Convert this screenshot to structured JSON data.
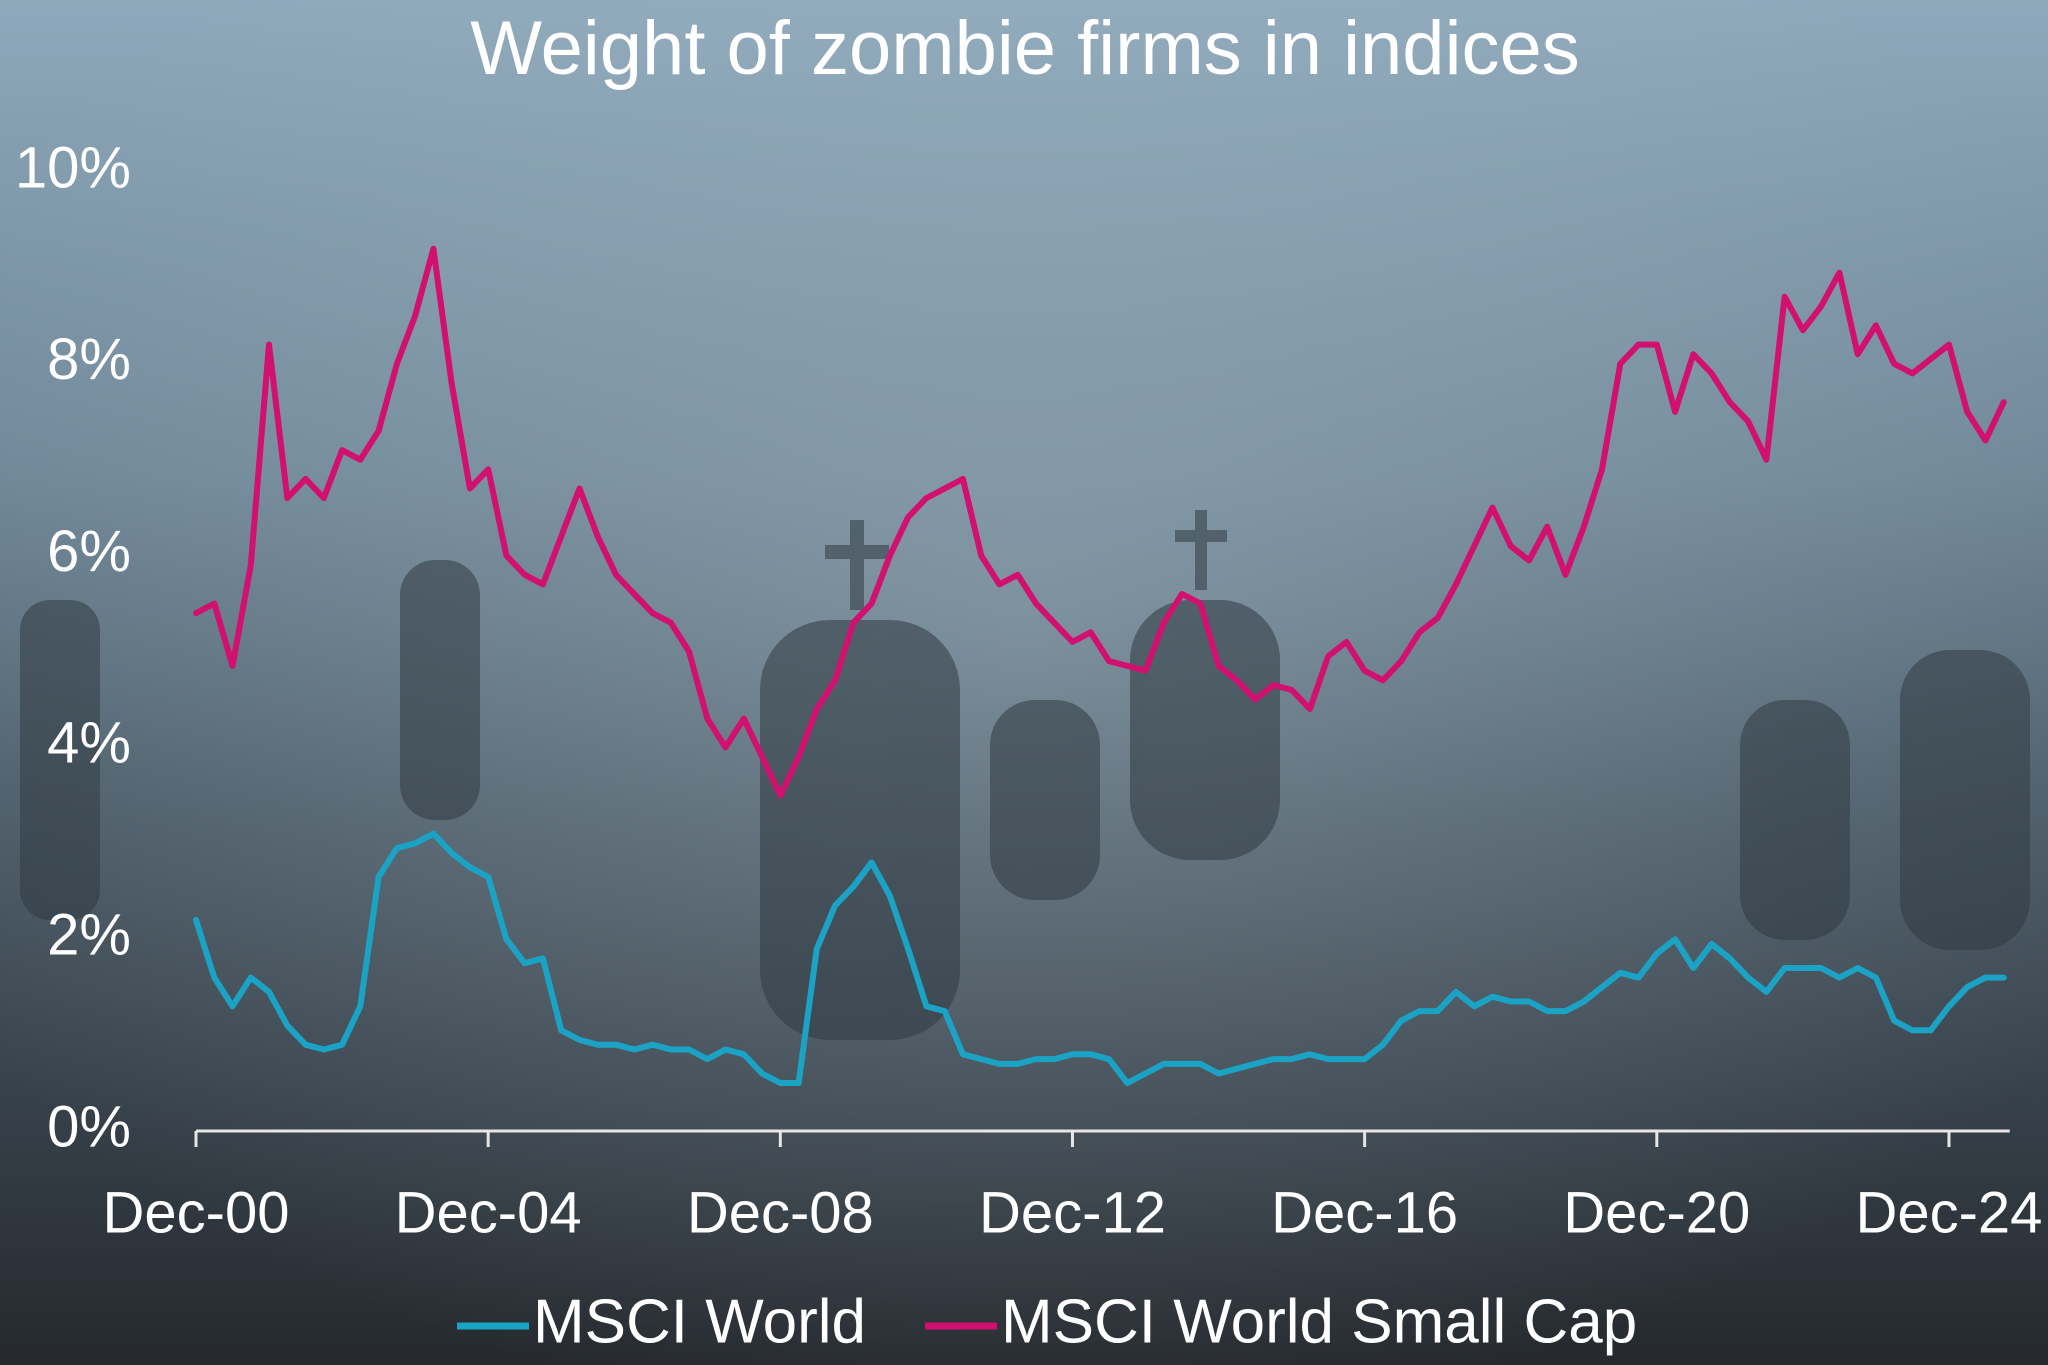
{
  "chart_data": {
    "type": "line",
    "title": "Weight of zombie firms in indices",
    "x": [
      "Dec-00",
      "Mar-01",
      "Jun-01",
      "Sep-01",
      "Dec-01",
      "Mar-02",
      "Jun-02",
      "Sep-02",
      "Dec-02",
      "Mar-03",
      "Jun-03",
      "Sep-03",
      "Dec-03",
      "Mar-04",
      "Jun-04",
      "Sep-04",
      "Dec-04",
      "Mar-05",
      "Jun-05",
      "Sep-05",
      "Dec-05",
      "Mar-06",
      "Jun-06",
      "Sep-06",
      "Dec-06",
      "Mar-07",
      "Jun-07",
      "Sep-07",
      "Dec-07",
      "Mar-08",
      "Jun-08",
      "Sep-08",
      "Dec-08",
      "Mar-09",
      "Jun-09",
      "Sep-09",
      "Dec-09",
      "Mar-10",
      "Jun-10",
      "Sep-10",
      "Dec-10",
      "Mar-11",
      "Jun-11",
      "Sep-11",
      "Dec-11",
      "Mar-12",
      "Jun-12",
      "Sep-12",
      "Dec-12",
      "Mar-13",
      "Jun-13",
      "Sep-13",
      "Dec-13",
      "Mar-14",
      "Jun-14",
      "Sep-14",
      "Dec-14",
      "Mar-15",
      "Jun-15",
      "Sep-15",
      "Dec-15",
      "Mar-16",
      "Jun-16",
      "Sep-16",
      "Dec-16",
      "Mar-17",
      "Jun-17",
      "Sep-17",
      "Dec-17",
      "Mar-18",
      "Jun-18",
      "Sep-18",
      "Dec-18",
      "Mar-19",
      "Jun-19",
      "Sep-19",
      "Dec-19",
      "Mar-20",
      "Jun-20",
      "Sep-20",
      "Dec-20",
      "Mar-21",
      "Jun-21",
      "Sep-21",
      "Dec-21",
      "Mar-22",
      "Jun-22",
      "Sep-22",
      "Dec-22",
      "Mar-23",
      "Jun-23",
      "Sep-23",
      "Dec-23",
      "Mar-24",
      "Jun-24",
      "Sep-24",
      "Dec-24",
      "Mar-25",
      "Jun-25",
      "Sep-25"
    ],
    "series": [
      {
        "name": "MSCI World",
        "color": "#1ba3c6",
        "values": [
          2.2,
          1.6,
          1.3,
          1.6,
          1.45,
          1.1,
          0.9,
          0.85,
          0.9,
          1.3,
          2.65,
          2.95,
          3.0,
          3.1,
          2.9,
          2.75,
          2.65,
          2.0,
          1.75,
          1.8,
          1.05,
          0.95,
          0.9,
          0.9,
          0.85,
          0.9,
          0.85,
          0.85,
          0.75,
          0.85,
          0.8,
          0.6,
          0.5,
          0.5,
          1.9,
          2.35,
          2.55,
          2.8,
          2.45,
          1.9,
          1.3,
          1.25,
          0.8,
          0.75,
          0.7,
          0.7,
          0.75,
          0.75,
          0.8,
          0.8,
          0.75,
          0.5,
          0.6,
          0.7,
          0.7,
          0.7,
          0.6,
          0.65,
          0.7,
          0.75,
          0.75,
          0.8,
          0.75,
          0.75,
          0.75,
          0.9,
          1.15,
          1.25,
          1.25,
          1.45,
          1.3,
          1.4,
          1.35,
          1.35,
          1.25,
          1.25,
          1.35,
          1.5,
          1.65,
          1.6,
          1.85,
          2.0,
          1.7,
          1.95,
          1.8,
          1.6,
          1.45,
          1.7,
          1.7,
          1.7,
          1.6,
          1.7,
          1.6,
          1.15,
          1.05,
          1.05,
          1.3,
          1.5,
          1.6,
          1.6
        ]
      },
      {
        "name": "MSCI World Small Cap",
        "color": "#d1106f",
        "values": [
          5.4,
          5.5,
          4.85,
          5.9,
          8.2,
          6.6,
          6.8,
          6.6,
          7.1,
          7.0,
          7.3,
          8.0,
          8.5,
          9.2,
          7.8,
          6.7,
          6.9,
          6.0,
          5.8,
          5.7,
          6.2,
          6.7,
          6.2,
          5.8,
          5.6,
          5.4,
          5.3,
          5.0,
          4.3,
          4.0,
          4.3,
          3.9,
          3.5,
          3.9,
          4.4,
          4.7,
          5.3,
          5.5,
          6.0,
          6.4,
          6.6,
          6.7,
          6.8,
          6.0,
          5.7,
          5.8,
          5.5,
          5.3,
          5.1,
          5.2,
          4.9,
          4.85,
          4.8,
          5.3,
          5.6,
          5.5,
          4.85,
          4.7,
          4.5,
          4.65,
          4.6,
          4.4,
          4.95,
          5.1,
          4.8,
          4.7,
          4.9,
          5.2,
          5.35,
          5.7,
          6.1,
          6.5,
          6.1,
          5.95,
          6.3,
          5.8,
          6.3,
          6.9,
          8.0,
          8.2,
          8.2,
          7.5,
          8.1,
          7.9,
          7.6,
          7.4,
          7.0,
          8.7,
          8.35,
          8.6,
          8.95,
          8.1,
          8.4,
          8.0,
          7.9,
          8.05,
          8.2,
          7.5,
          7.2,
          7.6
        ]
      }
    ],
    "xticks": [
      "Dec-00",
      "Dec-04",
      "Dec-08",
      "Dec-12",
      "Dec-16",
      "Dec-20",
      "Dec-24"
    ],
    "ylim": [
      0,
      10
    ],
    "yticks": [
      {
        "value": 0,
        "label": "0%"
      },
      {
        "value": 2,
        "label": "2%"
      },
      {
        "value": 4,
        "label": "4%"
      },
      {
        "value": 6,
        "label": "6%"
      },
      {
        "value": 8,
        "label": "8%"
      },
      {
        "value": 10,
        "label": "10%"
      }
    ],
    "grid": false,
    "legend": "bottom"
  }
}
